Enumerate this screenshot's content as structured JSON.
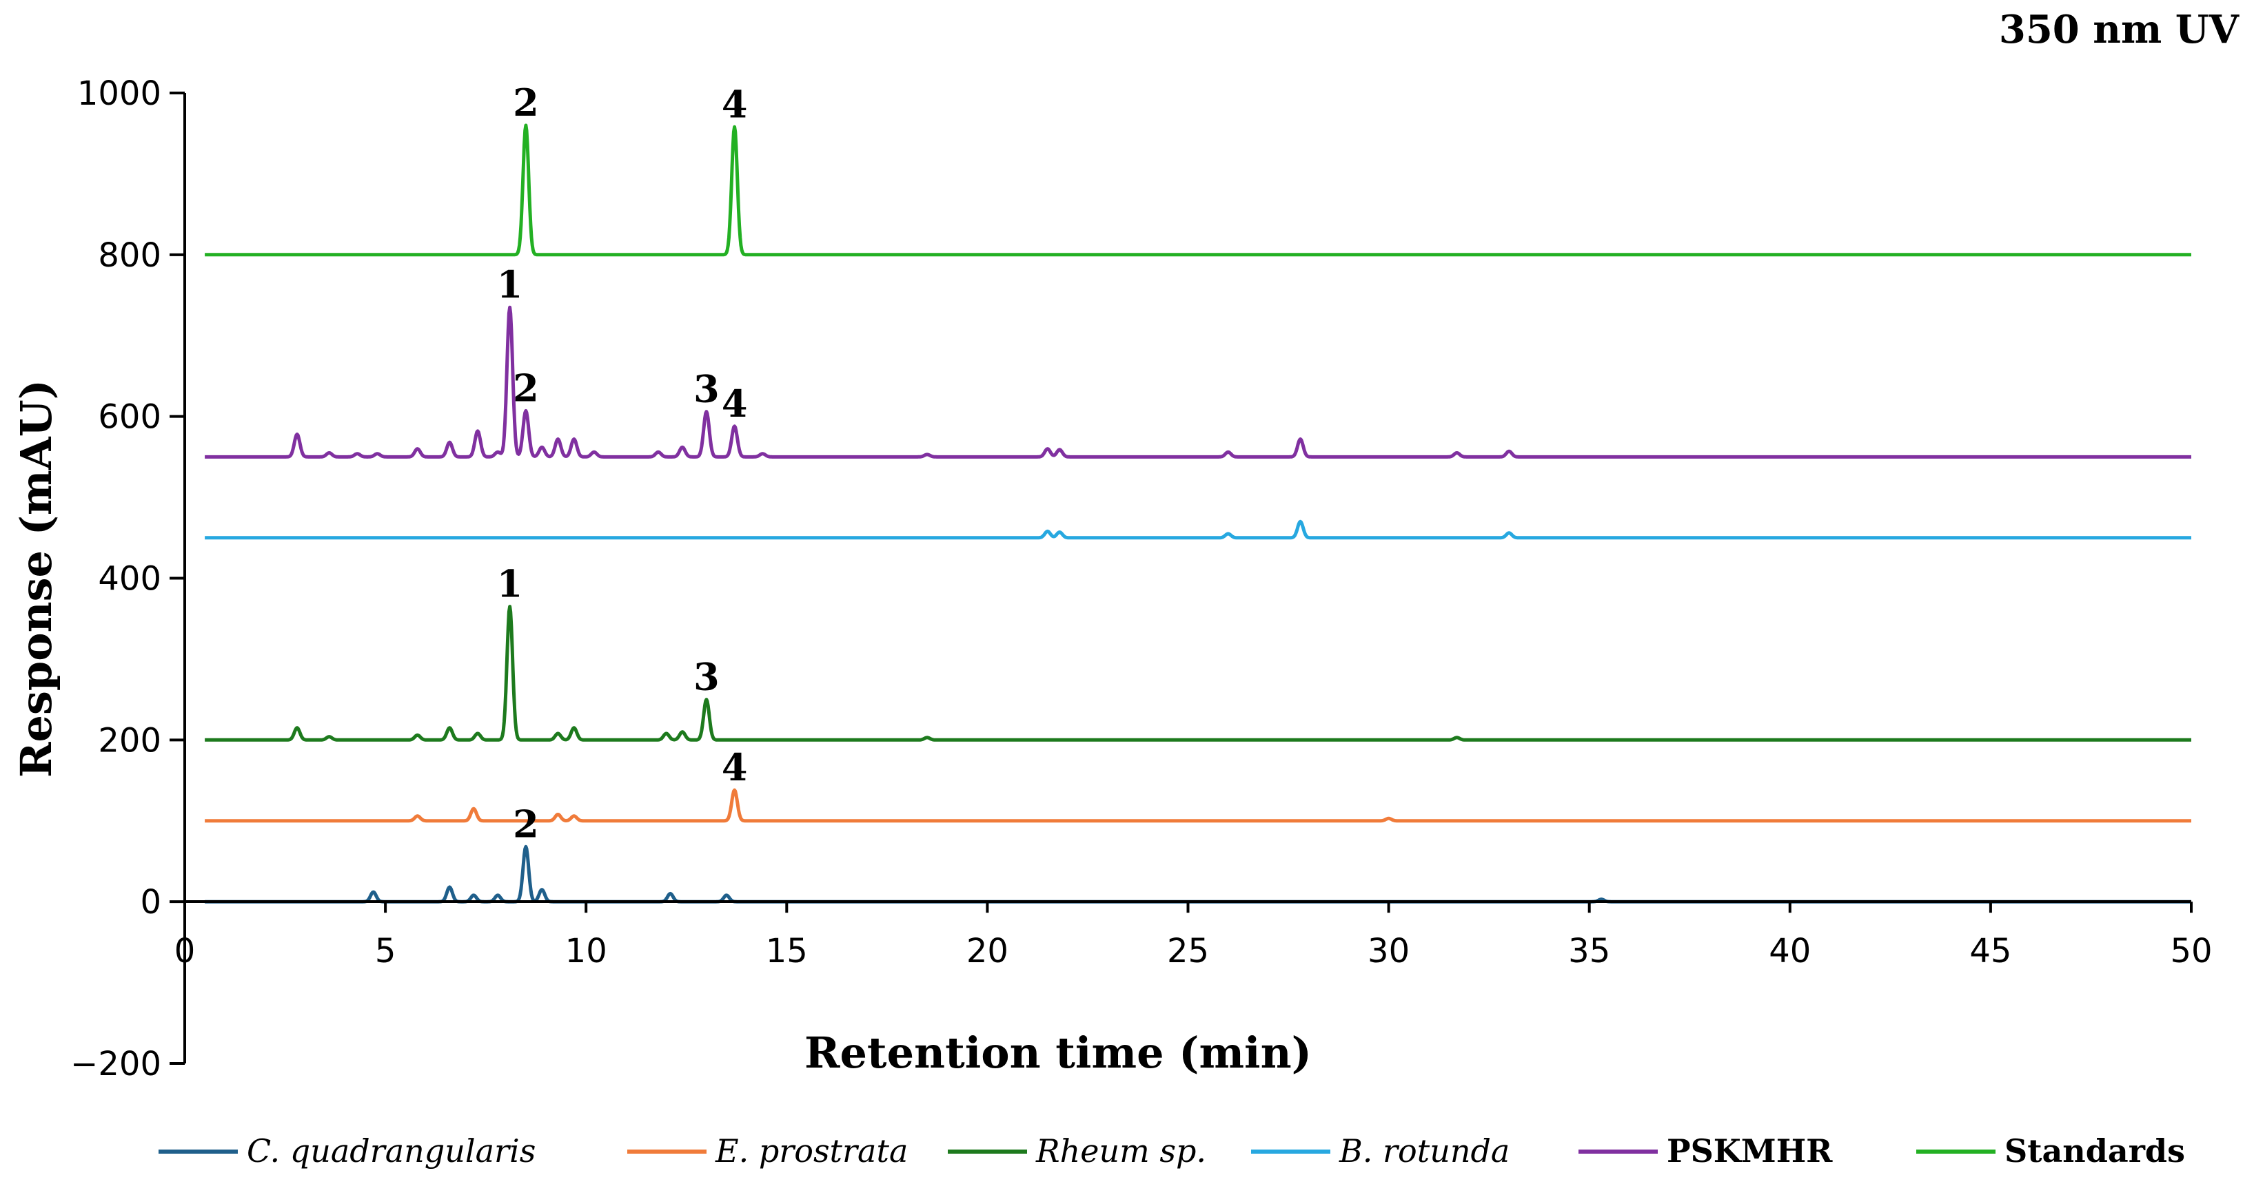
{
  "chart_data": {
    "type": "line",
    "title": "350 nm UV",
    "xlabel": "Retention time (min)",
    "ylabel": "Response (mAU)",
    "xlim": [
      0,
      50
    ],
    "ylim": [
      -200,
      1000
    ],
    "xticks": [
      "0",
      "5",
      "10",
      "15",
      "20",
      "25",
      "30",
      "35",
      "40",
      "45",
      "50"
    ],
    "yticks": [
      "−200",
      "0",
      "200",
      "400",
      "600",
      "800",
      "1000"
    ],
    "grid": false,
    "legend_position": "bottom",
    "series": [
      {
        "name": "C. quadrangularis",
        "style": "italic",
        "color": "#1f5f8b",
        "baseline": 0,
        "peaks": [
          [
            4.7,
            12
          ],
          [
            6.6,
            18
          ],
          [
            7.2,
            8
          ],
          [
            7.8,
            8
          ],
          [
            8.5,
            68
          ],
          [
            8.9,
            15
          ],
          [
            12.1,
            10
          ],
          [
            13.5,
            8
          ],
          [
            35.3,
            3
          ]
        ]
      },
      {
        "name": "E. prostrata",
        "style": "italic",
        "color": "#f07b3a",
        "baseline": 100,
        "peaks": [
          [
            5.8,
            6
          ],
          [
            7.2,
            15
          ],
          [
            9.3,
            8
          ],
          [
            9.7,
            6
          ],
          [
            13.7,
            38
          ],
          [
            30,
            3
          ]
        ]
      },
      {
        "name": "Rheum sp.",
        "style": "italic",
        "color": "#1d7a1d",
        "baseline": 200,
        "peaks": [
          [
            2.8,
            15
          ],
          [
            3.6,
            4
          ],
          [
            5.8,
            6
          ],
          [
            6.6,
            15
          ],
          [
            7.3,
            8
          ],
          [
            8.1,
            165
          ],
          [
            9.3,
            8
          ],
          [
            9.7,
            15
          ],
          [
            12.0,
            8
          ],
          [
            12.4,
            10
          ],
          [
            13.0,
            50
          ],
          [
            18.5,
            3
          ],
          [
            31.7,
            3
          ]
        ]
      },
      {
        "name": "B. rotunda",
        "style": "italic",
        "color": "#27a8e0",
        "baseline": 450,
        "peaks": [
          [
            21.5,
            8
          ],
          [
            21.8,
            7
          ],
          [
            26.0,
            5
          ],
          [
            27.8,
            20
          ],
          [
            33.0,
            6
          ]
        ]
      },
      {
        "name": "PSKMHR",
        "style": "bold",
        "color": "#8030a0",
        "baseline": 550,
        "peaks": [
          [
            2.8,
            28
          ],
          [
            3.6,
            5
          ],
          [
            4.3,
            4
          ],
          [
            4.8,
            4
          ],
          [
            5.8,
            10
          ],
          [
            6.6,
            18
          ],
          [
            7.3,
            32
          ],
          [
            7.8,
            6
          ],
          [
            8.1,
            185
          ],
          [
            8.5,
            57
          ],
          [
            8.9,
            12
          ],
          [
            9.3,
            22
          ],
          [
            9.7,
            22
          ],
          [
            10.2,
            6
          ],
          [
            11.8,
            6
          ],
          [
            12.4,
            12
          ],
          [
            13.0,
            56
          ],
          [
            13.7,
            38
          ],
          [
            14.4,
            4
          ],
          [
            18.5,
            3
          ],
          [
            21.5,
            10
          ],
          [
            21.8,
            9
          ],
          [
            26.0,
            6
          ],
          [
            27.8,
            22
          ],
          [
            31.7,
            5
          ],
          [
            33.0,
            7
          ]
        ]
      },
      {
        "name": "Standards",
        "style": "bold",
        "color": "#23b023",
        "baseline": 800,
        "peaks": [
          [
            8.5,
            160
          ],
          [
            13.7,
            158
          ]
        ]
      }
    ],
    "annotations": [
      {
        "label": "2",
        "x": 8.5,
        "y": 960
      },
      {
        "label": "4",
        "x": 13.7,
        "y": 958
      },
      {
        "label": "1",
        "x": 8.1,
        "y": 735
      },
      {
        "label": "2",
        "x": 8.5,
        "y": 607
      },
      {
        "label": "3",
        "x": 13.0,
        "y": 606
      },
      {
        "label": "4",
        "x": 13.7,
        "y": 588
      },
      {
        "label": "1",
        "x": 8.1,
        "y": 365
      },
      {
        "label": "3",
        "x": 13.0,
        "y": 250
      },
      {
        "label": "4",
        "x": 13.7,
        "y": 138
      },
      {
        "label": "2",
        "x": 8.5,
        "y": 68
      }
    ]
  }
}
